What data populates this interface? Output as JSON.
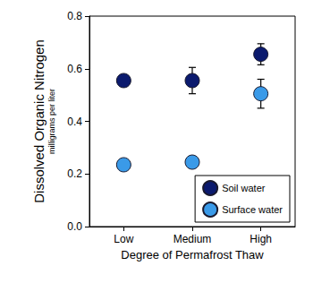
{
  "chart_data": {
    "type": "scatter",
    "categories": [
      "Low",
      "Medium",
      "High"
    ],
    "series": [
      {
        "name": "Soil water",
        "color": "#0b1a6e",
        "values": [
          0.555,
          0.555,
          0.655
        ],
        "errors": [
          0.012,
          0.05,
          0.04
        ]
      },
      {
        "name": "Surface water",
        "color": "#3a9ae8",
        "values": [
          0.235,
          0.245,
          0.505
        ],
        "errors": [
          0.01,
          0.01,
          0.055
        ]
      }
    ],
    "xlabel": "Degree of Permafrost Thaw",
    "ylabel": "Dissolved Organic Nitrogen",
    "ylabel_units": "milligrams per liter",
    "ylim": [
      0,
      0.8
    ],
    "yticks": [
      {
        "value": 0,
        "label": "0.0"
      },
      {
        "value": 0.2,
        "label": "0.2"
      },
      {
        "value": 0.4,
        "label": "0.4"
      },
      {
        "value": 0.6,
        "label": "0.6"
      },
      {
        "value": 0.8,
        "label": "0.8"
      }
    ],
    "marker": "circle",
    "legend": "lower right",
    "grid": false
  }
}
